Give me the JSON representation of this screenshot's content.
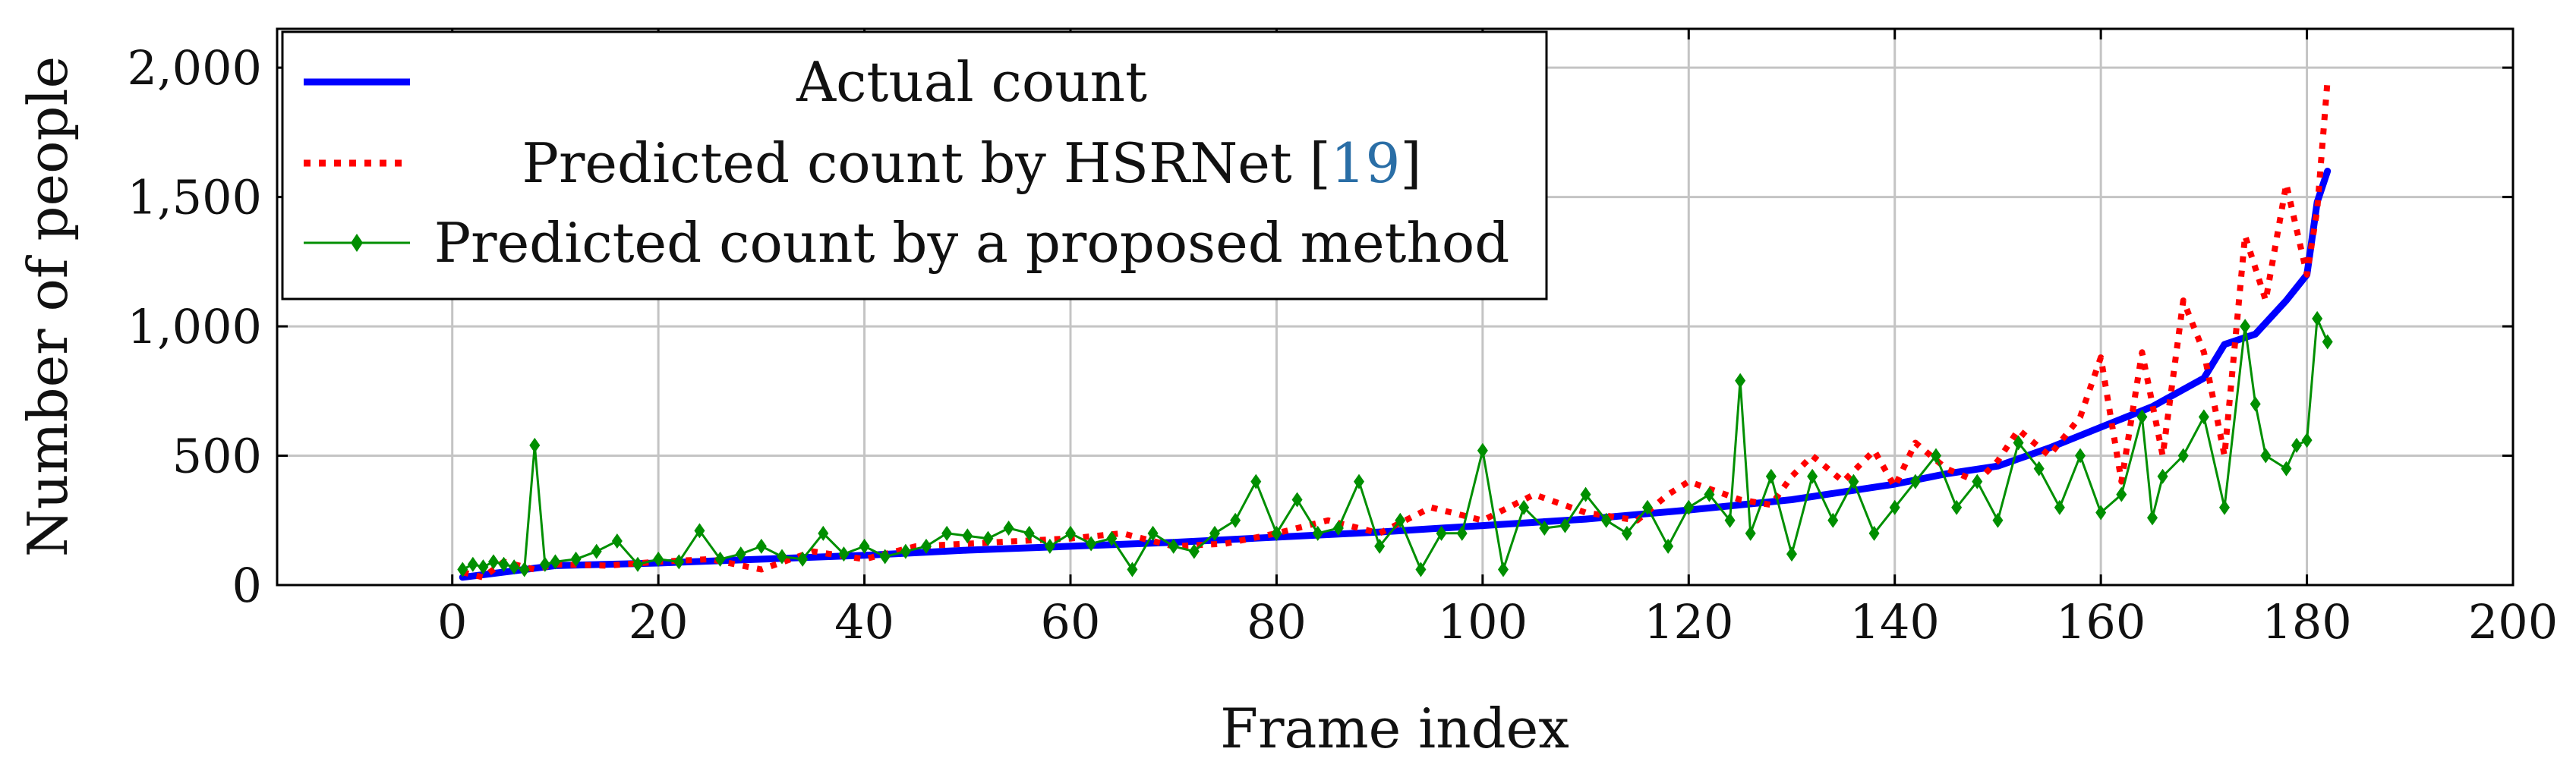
{
  "chart_data": {
    "type": "line",
    "xlabel": "Frame index",
    "ylabel": "Number of people",
    "xlim": [
      -17,
      200
    ],
    "ylim": [
      0,
      2150
    ],
    "xticks": [
      0,
      20,
      40,
      60,
      80,
      100,
      120,
      140,
      160,
      180,
      200
    ],
    "yticks": [
      0,
      500,
      1000,
      1500,
      2000
    ],
    "xtick_labels": [
      "0",
      "20",
      "40",
      "60",
      "80",
      "100",
      "120",
      "140",
      "160",
      "180",
      "200"
    ],
    "ytick_labels": [
      "0",
      "500",
      "1,000",
      "1,500",
      "2,000"
    ],
    "grid": true,
    "legend_position": "top-left",
    "series": [
      {
        "name": "Actual count",
        "color": "#0000ff",
        "style": "solid",
        "x": [
          1,
          10,
          20,
          30,
          40,
          50,
          60,
          70,
          80,
          90,
          100,
          110,
          120,
          130,
          140,
          145,
          150,
          155,
          160,
          165,
          170,
          172,
          175,
          178,
          180,
          181,
          182
        ],
        "y": [
          30,
          75,
          85,
          100,
          115,
          135,
          150,
          165,
          185,
          205,
          230,
          255,
          290,
          330,
          390,
          430,
          460,
          530,
          610,
          690,
          800,
          930,
          970,
          1100,
          1200,
          1480,
          1600
        ]
      },
      {
        "name": "Predicted count by HSRNet [19]",
        "name_ref": "19",
        "color": "#ff0000",
        "style": "dotted",
        "x": [
          1,
          3,
          5,
          8,
          10,
          15,
          20,
          25,
          30,
          35,
          40,
          45,
          50,
          55,
          60,
          65,
          70,
          75,
          80,
          85,
          90,
          95,
          100,
          105,
          110,
          115,
          118,
          120,
          125,
          128,
          130,
          132,
          135,
          138,
          140,
          142,
          145,
          148,
          150,
          152,
          155,
          158,
          160,
          162,
          164,
          166,
          168,
          170,
          172,
          174,
          176,
          178,
          180,
          181,
          182
        ],
        "y": [
          50,
          30,
          90,
          60,
          80,
          75,
          90,
          100,
          60,
          130,
          100,
          150,
          160,
          170,
          180,
          200,
          150,
          160,
          200,
          250,
          200,
          300,
          250,
          350,
          280,
          250,
          350,
          400,
          330,
          310,
          420,
          500,
          400,
          520,
          380,
          550,
          450,
          400,
          480,
          600,
          500,
          650,
          880,
          400,
          900,
          500,
          1100,
          900,
          500,
          1350,
          1100,
          1550,
          1200,
          1450,
          1950
        ]
      },
      {
        "name": "Predicted count by a proposed method",
        "color": "#008f00",
        "style": "solid-diamond",
        "x": [
          1,
          2,
          3,
          4,
          5,
          6,
          7,
          8,
          9,
          10,
          12,
          14,
          16,
          18,
          20,
          22,
          24,
          26,
          28,
          30,
          32,
          34,
          36,
          38,
          40,
          42,
          44,
          46,
          48,
          50,
          52,
          54,
          56,
          58,
          60,
          62,
          64,
          66,
          68,
          70,
          72,
          74,
          76,
          78,
          80,
          82,
          84,
          86,
          88,
          90,
          92,
          94,
          96,
          98,
          100,
          102,
          104,
          106,
          108,
          110,
          112,
          114,
          116,
          118,
          120,
          122,
          124,
          125,
          126,
          128,
          130,
          132,
          134,
          136,
          138,
          140,
          142,
          144,
          146,
          148,
          150,
          152,
          154,
          156,
          158,
          160,
          162,
          164,
          165,
          166,
          168,
          170,
          172,
          174,
          175,
          176,
          178,
          179,
          180,
          181,
          182
        ],
        "y": [
          60,
          80,
          70,
          90,
          80,
          70,
          60,
          540,
          80,
          90,
          100,
          130,
          170,
          80,
          100,
          90,
          210,
          100,
          120,
          150,
          110,
          100,
          200,
          120,
          150,
          110,
          130,
          150,
          200,
          190,
          180,
          220,
          200,
          150,
          200,
          160,
          180,
          60,
          200,
          150,
          130,
          200,
          250,
          400,
          200,
          330,
          200,
          220,
          400,
          150,
          250,
          60,
          200,
          200,
          520,
          60,
          300,
          220,
          230,
          350,
          250,
          200,
          300,
          150,
          300,
          350,
          250,
          790,
          200,
          420,
          120,
          420,
          250,
          400,
          200,
          300,
          400,
          500,
          300,
          400,
          250,
          550,
          450,
          300,
          500,
          280,
          350,
          650,
          260,
          420,
          500,
          650,
          300,
          1000,
          700,
          500,
          450,
          540,
          560,
          1030,
          940
        ]
      }
    ]
  }
}
